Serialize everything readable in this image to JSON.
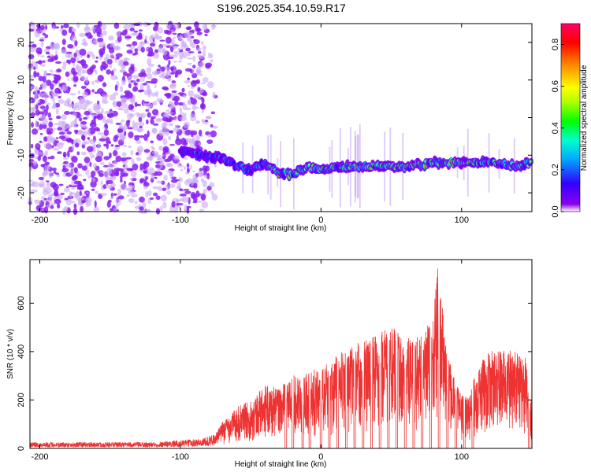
{
  "figure_title": "S196.2025.354.10.59.R17",
  "chart_data": [
    {
      "type": "heatmap",
      "xlabel": "Height of straight line (km)",
      "ylabel": "Frequency (Hz)",
      "xlim": [
        -207,
        150
      ],
      "ylim": [
        -25,
        25
      ],
      "xticks": [
        -200,
        -100,
        0,
        100
      ],
      "yticks": [
        -20,
        -10,
        0,
        10,
        20
      ],
      "colorbar": {
        "label": "Normalized spectral amplitude",
        "range": [
          0,
          0.9
        ],
        "ticks": [
          "0.0",
          "0.2",
          "0.4",
          "0.6",
          "0.8"
        ],
        "tick_values": [
          0.0,
          0.2,
          0.4,
          0.6,
          0.8
        ]
      },
      "ridge": {
        "name": "dominant frequency ridge",
        "x": [
          -100,
          -85,
          -70,
          -60,
          -50,
          -40,
          -30,
          -20,
          -10,
          0,
          20,
          40,
          60,
          80,
          100,
          120,
          140,
          150
        ],
        "y": [
          -9,
          -10,
          -11,
          -13,
          -14,
          -12,
          -15,
          -15,
          -13,
          -14,
          -13,
          -13,
          -13,
          -12,
          -12,
          -12,
          -13,
          -12
        ]
      },
      "noise_region": {
        "from": -207,
        "to": -75,
        "description": "broadband low-amplitude speckle"
      }
    },
    {
      "type": "line",
      "xlabel": "Height of straight line (km)",
      "ylabel": "SNR (10 * v/v)",
      "xlim": [
        -207,
        150
      ],
      "ylim": [
        0,
        780
      ],
      "xticks": [
        -200,
        -100,
        0,
        100
      ],
      "yticks": [
        0,
        200,
        400,
        600
      ],
      "series": [
        {
          "name": "SNR",
          "color": "#ee3333",
          "envelope_x": [
            -207,
            -120,
            -85,
            -75,
            -70,
            -60,
            -50,
            -40,
            -30,
            -20,
            -10,
            0,
            10,
            20,
            30,
            40,
            50,
            60,
            70,
            80,
            83,
            90,
            100,
            105,
            110,
            120,
            130,
            140,
            145,
            150
          ],
          "envelope_y": [
            25,
            25,
            40,
            60,
            110,
            170,
            200,
            260,
            250,
            300,
            320,
            330,
            380,
            420,
            450,
            480,
            510,
            450,
            470,
            560,
            780,
            380,
            220,
            210,
            330,
            400,
            410,
            400,
            380,
            210
          ],
          "dropouts_x": [
            -25,
            -20,
            -13,
            -8,
            0,
            6,
            12,
            18,
            24,
            30,
            36,
            42,
            48,
            54,
            60,
            66,
            72,
            78,
            84,
            90,
            96,
            102,
            108,
            148
          ]
        }
      ]
    }
  ],
  "colors": {
    "line": "#ee3333",
    "axis": "#000000",
    "background": "#ffffff"
  }
}
